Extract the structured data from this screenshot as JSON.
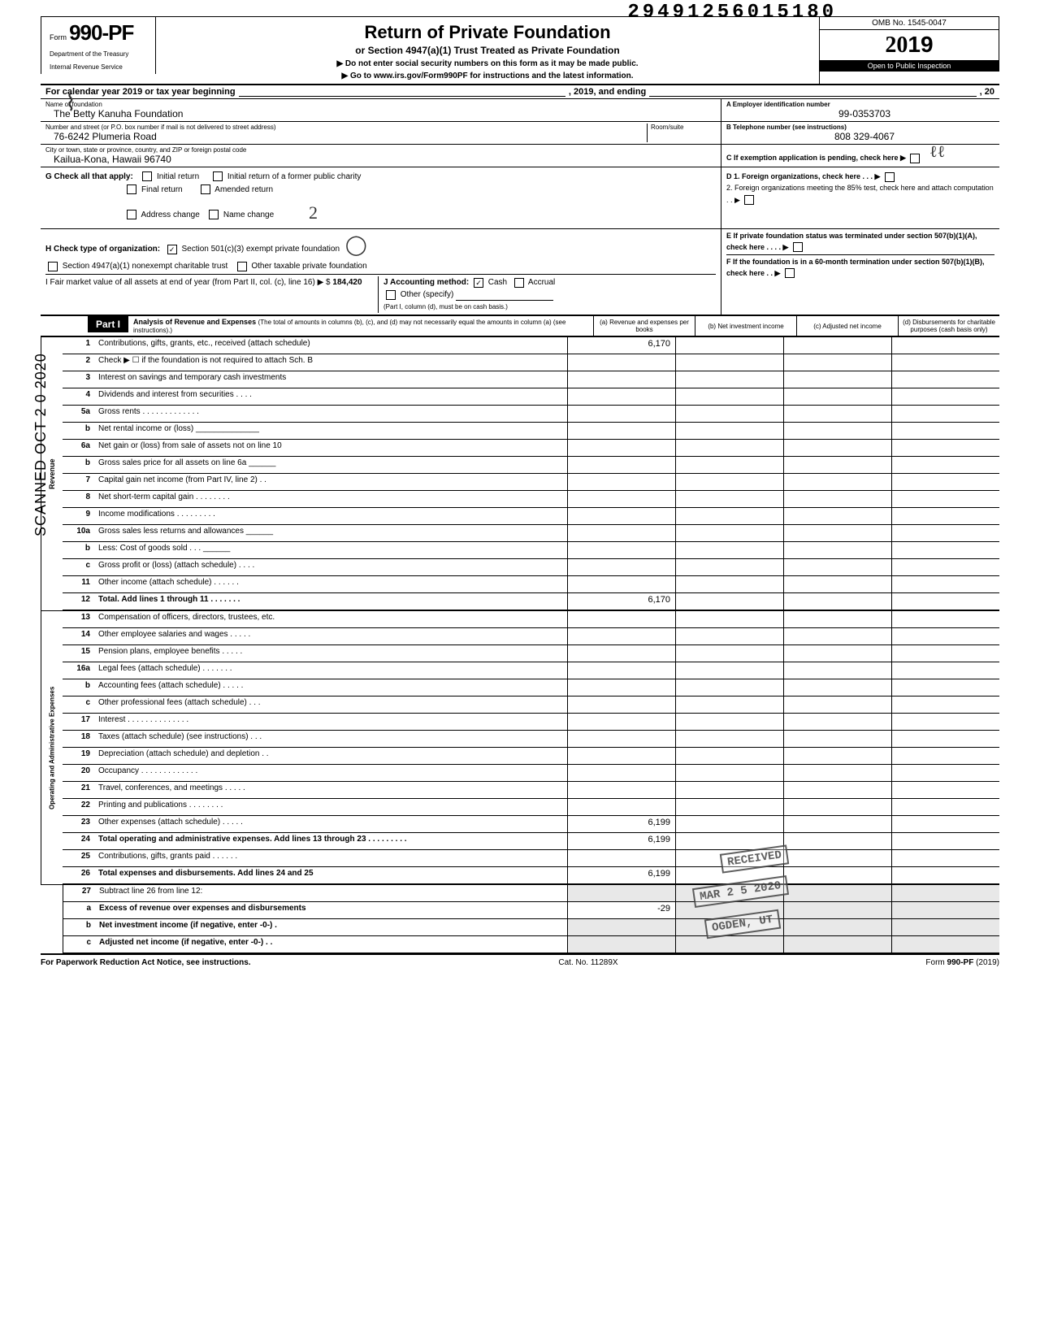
{
  "dln": "29491256015180",
  "omb": "OMB No. 1545-0047",
  "year": "2019",
  "inspection": "Open to Public Inspection",
  "form_prefix": "Form",
  "form_number": "990-PF",
  "title": "Return of Private Foundation",
  "subtitle": "or Section 4947(a)(1) Trust Treated as Private Foundation",
  "arrow1": "▶ Do not enter social security numbers on this form as it may be made public.",
  "arrow2": "▶ Go to www.irs.gov/Form990PF for instructions and the latest information.",
  "dept1": "Department of the Treasury",
  "dept2": "Internal Revenue Service",
  "cal_year_a": "For calendar year 2019 or tax year beginning",
  "cal_year_b": ", 2019, and ending",
  "cal_year_c": ", 20",
  "foundation": {
    "name_label": "Name of foundation",
    "name": "The Betty Kanuha Foundation",
    "ein_label": "A  Employer identification number",
    "ein": "99-0353703",
    "addr_label": "Number and street (or P.O. box number if mail is not delivered to street address)",
    "room_label": "Room/suite",
    "street": "76-6242 Plumeria Road",
    "tel_label": "B  Telephone number (see instructions)",
    "tel": "808 329-4067",
    "city_label": "City or town, state or province, country, and ZIP or foreign postal code",
    "city": "Kailua-Kona, Hawaii 96740",
    "pending": "C  If exemption application is pending, check here ▶"
  },
  "g": {
    "label": "G  Check all that apply:",
    "opts": [
      "Initial return",
      "Initial return of a former public charity",
      "Final return",
      "Amended return",
      "Address change",
      "Name change"
    ]
  },
  "d": {
    "d1": "D  1. Foreign organizations, check here . . . ▶",
    "d2": "2. Foreign organizations meeting the 85% test, check here and attach computation . . ▶"
  },
  "h": {
    "label": "H  Check type of organization:",
    "opt1": "Section 501(c)(3) exempt private foundation",
    "opt2": "Section 4947(a)(1) nonexempt charitable trust",
    "opt3": "Other taxable private foundation"
  },
  "e": "E  If private foundation status was terminated under section 507(b)(1)(A), check here . . . . ▶",
  "i": {
    "label": "I  Fair market value of all assets at end of year (from Part II, col. (c), line 16) ▶ $",
    "val": "184,420"
  },
  "j": {
    "label": "J  Accounting method:",
    "cash": "Cash",
    "accrual": "Accrual",
    "other": "Other (specify)",
    "note": "(Part I, column (d), must be on cash basis.)"
  },
  "f": "F  If the foundation is in a 60-month termination under section 507(b)(1)(B), check here . . ▶",
  "part1": {
    "label": "Part I",
    "desc": "Analysis of Revenue and Expenses (The total of amounts in columns (b), (c), and (d) may not necessarily equal the amounts in column (a) (see instructions).)",
    "cols": [
      "(a) Revenue and expenses per books",
      "(b) Net investment income",
      "(c) Adjusted net income",
      "(d) Disbursements for charitable purposes (cash basis only)"
    ]
  },
  "side_scanned": "SCANNED OCT 2 0 2020",
  "side_revenue": "Revenue",
  "side_expenses": "Operating and Administrative Expenses",
  "lines": [
    {
      "num": "1",
      "desc": "Contributions, gifts, grants, etc., received (attach schedule)",
      "a": "6,170"
    },
    {
      "num": "2",
      "desc": "Check ▶ ☐ if the foundation is not required to attach Sch. B"
    },
    {
      "num": "3",
      "desc": "Interest on savings and temporary cash investments"
    },
    {
      "num": "4",
      "desc": "Dividends and interest from securities . . . ."
    },
    {
      "num": "5a",
      "desc": "Gross rents . . . . . . . . . . . . ."
    },
    {
      "num": "b",
      "desc": "Net rental income or (loss) ______________"
    },
    {
      "num": "6a",
      "desc": "Net gain or (loss) from sale of assets not on line 10"
    },
    {
      "num": "b",
      "desc": "Gross sales price for all assets on line 6a ______"
    },
    {
      "num": "7",
      "desc": "Capital gain net income (from Part IV, line 2) . ."
    },
    {
      "num": "8",
      "desc": "Net short-term capital gain . . . . . . . ."
    },
    {
      "num": "9",
      "desc": "Income modifications  . . . . . . . . ."
    },
    {
      "num": "10a",
      "desc": "Gross sales less returns and allowances ______"
    },
    {
      "num": "b",
      "desc": "Less: Cost of goods sold  . . . ______"
    },
    {
      "num": "c",
      "desc": "Gross profit or (loss) (attach schedule) . . . ."
    },
    {
      "num": "11",
      "desc": "Other income (attach schedule) . . . . . ."
    },
    {
      "num": "12",
      "desc": "Total. Add lines 1 through 11 . . . . . . .",
      "a": "6,170",
      "bold": true
    }
  ],
  "exp_lines": [
    {
      "num": "13",
      "desc": "Compensation of officers, directors, trustees, etc."
    },
    {
      "num": "14",
      "desc": "Other employee salaries and wages . . . . ."
    },
    {
      "num": "15",
      "desc": "Pension plans, employee benefits  . . . . ."
    },
    {
      "num": "16a",
      "desc": "Legal fees (attach schedule)  . . . . . . ."
    },
    {
      "num": "b",
      "desc": "Accounting fees (attach schedule)  . . . . ."
    },
    {
      "num": "c",
      "desc": "Other professional fees (attach schedule) . . ."
    },
    {
      "num": "17",
      "desc": "Interest . . . . . . . . . . . . . ."
    },
    {
      "num": "18",
      "desc": "Taxes (attach schedule) (see instructions) . . ."
    },
    {
      "num": "19",
      "desc": "Depreciation (attach schedule) and depletion . ."
    },
    {
      "num": "20",
      "desc": "Occupancy . . . . . . . . . . . . ."
    },
    {
      "num": "21",
      "desc": "Travel, conferences, and meetings . . . . ."
    },
    {
      "num": "22",
      "desc": "Printing and publications  . . . . . . . ."
    },
    {
      "num": "23",
      "desc": "Other expenses (attach schedule)  . . . . .",
      "a": "6,199"
    },
    {
      "num": "24",
      "desc": "Total operating and administrative expenses. Add lines 13 through 23 . . . . . . . . .",
      "a": "6,199",
      "bold": true
    },
    {
      "num": "25",
      "desc": "Contributions, gifts, grants paid  . . . . . ."
    },
    {
      "num": "26",
      "desc": "Total expenses and disbursements. Add lines 24 and 25",
      "a": "6,199",
      "bold": true
    }
  ],
  "net_lines": [
    {
      "num": "27",
      "desc": "Subtract line 26 from line 12:"
    },
    {
      "num": "a",
      "desc": "Excess of revenue over expenses and disbursements",
      "a": "-29",
      "bold": true
    },
    {
      "num": "b",
      "desc": "Net investment income (if negative, enter -0-) .",
      "bold": true
    },
    {
      "num": "c",
      "desc": "Adjusted net income (if negative, enter -0-) . .",
      "bold": true
    }
  ],
  "stamps": {
    "received": "RECEIVED",
    "date": "MAR 2 5 2020",
    "ogden": "OGDEN, UT"
  },
  "footer": {
    "left": "For Paperwork Reduction Act Notice, see instructions.",
    "mid": "Cat. No. 11289X",
    "right": "Form 990-PF (2019)"
  }
}
